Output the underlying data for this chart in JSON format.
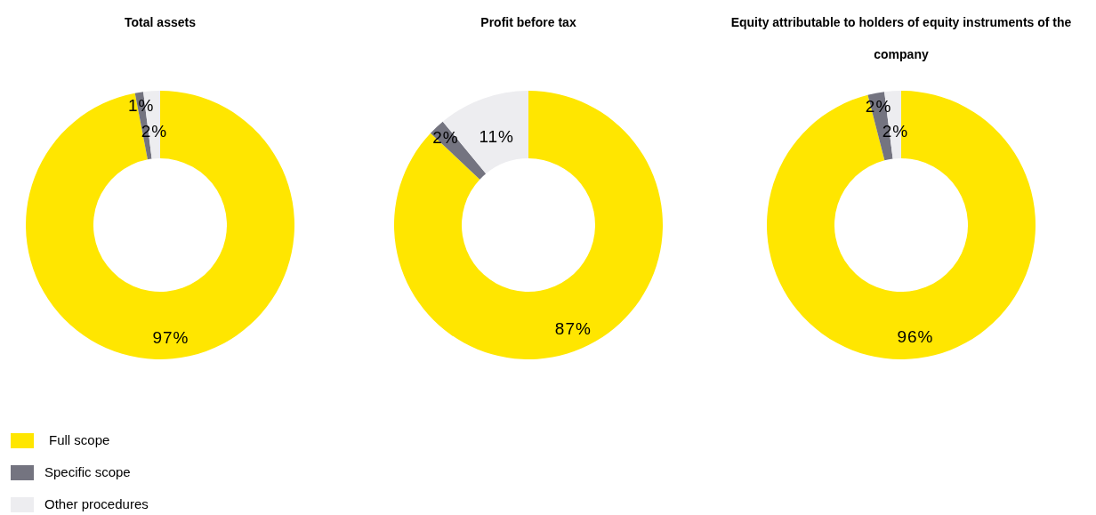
{
  "chart_data": [
    {
      "type": "donut",
      "title": "Total assets",
      "categories": [
        "Full scope",
        "Specific scope",
        "Other procedures"
      ],
      "values": [
        97,
        1,
        2
      ],
      "value_labels": [
        "97%",
        "1%",
        "2%"
      ],
      "colors": [
        "#ffe600",
        "#747480",
        "#ededf0"
      ],
      "legend": "bottom left"
    },
    {
      "type": "donut",
      "title": "Profit before tax",
      "values": [
        87,
        2,
        11
      ],
      "value_labels": [
        "87%",
        "2%",
        "11%"
      ],
      "colors": [
        "#ffe600",
        "#747480",
        "#ededf0"
      ]
    },
    {
      "type": "donut",
      "title": "Equity attributable to holders of equity instruments of the company",
      "values": [
        96,
        2,
        2
      ],
      "value_labels": [
        "96%",
        "2%",
        "2%"
      ],
      "colors": [
        "#ffe600",
        "#747480",
        "#ededf0"
      ]
    }
  ]
}
